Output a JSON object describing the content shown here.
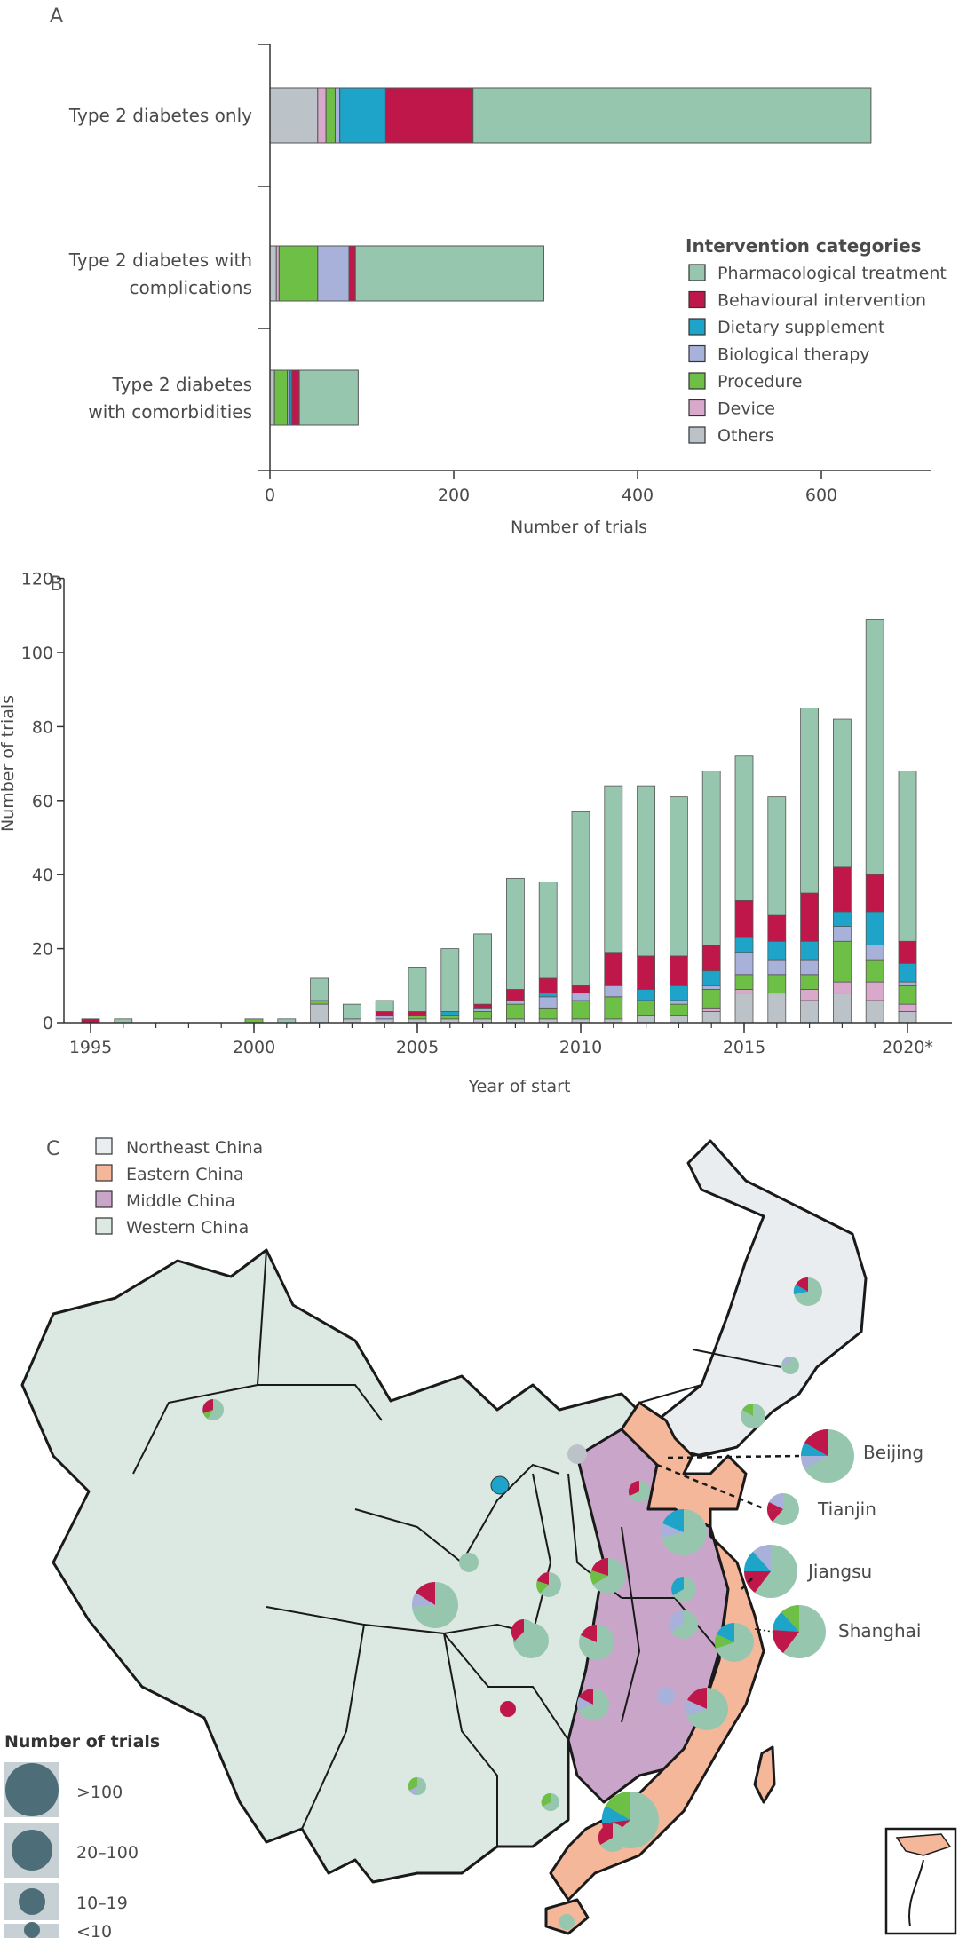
{
  "chart_data": [
    {
      "panel": "A",
      "type": "bar",
      "orientation": "horizontal",
      "stacked": true,
      "categories": [
        "Type 2 diabetes only",
        "Type 2 diabetes with complications",
        "Type 2 diabetes with comorbidities"
      ],
      "category_lines": [
        [
          "Type 2 diabetes only"
        ],
        [
          "Type 2 diabetes with",
          "complications"
        ],
        [
          "Type 2 diabetes",
          "with comorbidities"
        ]
      ],
      "series": [
        {
          "name": "Others",
          "color": "#bcc3c8",
          "values": [
            52,
            7,
            5
          ]
        },
        {
          "name": "Device",
          "color": "#d9a9cc",
          "values": [
            9,
            3,
            0
          ]
        },
        {
          "name": "Procedure",
          "color": "#6ebf45",
          "values": [
            10,
            42,
            14
          ]
        },
        {
          "name": "Biological therapy",
          "color": "#a8b1da",
          "values": [
            5,
            34,
            3
          ]
        },
        {
          "name": "Dietary supplement",
          "color": "#1ea3c9",
          "values": [
            50,
            0,
            2
          ]
        },
        {
          "name": "Behavioural intervention",
          "color": "#c0174a",
          "values": [
            95,
            7,
            8
          ]
        },
        {
          "name": "Pharmacological treatment",
          "color": "#97c6af",
          "values": [
            433,
            205,
            64
          ]
        }
      ],
      "xlabel": "Number of trials",
      "xlim": [
        0,
        700
      ],
      "xticks": [
        0,
        200,
        400,
        600
      ],
      "legend_title": "Intervention categories",
      "legend_order": [
        "Pharmacological treatment",
        "Behavioural intervention",
        "Dietary supplement",
        "Biological therapy",
        "Procedure",
        "Device",
        "Others"
      ]
    },
    {
      "panel": "B",
      "type": "bar",
      "stacked": true,
      "categories": [
        "1995",
        "1996",
        "1997",
        "1998",
        "1999",
        "2000",
        "2001",
        "2002",
        "2003",
        "2004",
        "2005",
        "2006",
        "2007",
        "2008",
        "2009",
        "2010",
        "2011",
        "2012",
        "2013",
        "2014",
        "2015",
        "2016",
        "2017",
        "2018",
        "2019",
        "2020"
      ],
      "series": [
        {
          "name": "Others",
          "color": "#bcc3c8",
          "values": [
            0,
            0,
            0,
            0,
            0,
            0,
            0,
            5,
            1,
            1,
            1,
            1,
            1,
            1,
            1,
            1,
            1,
            2,
            2,
            3,
            8,
            8,
            6,
            8,
            6,
            3
          ]
        },
        {
          "name": "Device",
          "color": "#d9a9cc",
          "values": [
            0,
            0,
            0,
            0,
            0,
            0,
            0,
            0,
            0,
            0,
            0,
            0,
            0,
            0,
            0,
            0,
            0,
            0,
            0,
            1,
            1,
            0,
            3,
            3,
            5,
            2
          ]
        },
        {
          "name": "Procedure",
          "color": "#6ebf45",
          "values": [
            0,
            0,
            0,
            0,
            0,
            1,
            0,
            1,
            0,
            0,
            1,
            1,
            2,
            4,
            3,
            5,
            6,
            4,
            3,
            5,
            4,
            5,
            4,
            11,
            6,
            5
          ]
        },
        {
          "name": "Biological therapy",
          "color": "#a8b1da",
          "values": [
            0,
            0,
            0,
            0,
            0,
            0,
            0,
            0,
            0,
            1,
            0,
            0,
            1,
            1,
            3,
            2,
            3,
            0,
            1,
            1,
            6,
            4,
            4,
            4,
            4,
            1
          ]
        },
        {
          "name": "Dietary supplement",
          "color": "#1ea3c9",
          "values": [
            0,
            0,
            0,
            0,
            0,
            0,
            0,
            0,
            0,
            0,
            0,
            1,
            0,
            0,
            1,
            0,
            0,
            3,
            4,
            4,
            4,
            5,
            5,
            4,
            9,
            5
          ]
        },
        {
          "name": "Behavioural intervention",
          "color": "#c0174a",
          "values": [
            1,
            0,
            0,
            0,
            0,
            0,
            0,
            0,
            0,
            1,
            1,
            0,
            1,
            3,
            4,
            2,
            9,
            9,
            8,
            7,
            10,
            7,
            13,
            12,
            10,
            6
          ]
        },
        {
          "name": "Pharmacological treatment",
          "color": "#97c6af",
          "values": [
            0,
            1,
            0,
            0,
            0,
            0,
            1,
            6,
            4,
            3,
            12,
            17,
            19,
            30,
            26,
            47,
            45,
            46,
            43,
            47,
            39,
            32,
            50,
            40,
            69,
            46
          ]
        }
      ],
      "xlabel": "Year of start",
      "ylabel": "Number of trials",
      "ylim": [
        0,
        120
      ],
      "yticks": [
        0,
        20,
        40,
        60,
        80,
        100,
        120
      ],
      "xtick_labels": [
        "1995",
        "2000",
        "2005",
        "2010",
        "2015",
        "2020*"
      ]
    }
  ],
  "panels": {
    "a": "A",
    "b": "B",
    "c": "C"
  },
  "map": {
    "region_legend": [
      {
        "name": "Northeast China",
        "color": "#e9edf0"
      },
      {
        "name": "Eastern China",
        "color": "#f5b79a"
      },
      {
        "name": "Middle China",
        "color": "#c9a5c9"
      },
      {
        "name": "Western China",
        "color": "#dce8e2"
      }
    ],
    "size_legend_title": "Number of trials",
    "size_legend": [
      ">100",
      "20–100",
      "10–19",
      "<10"
    ],
    "callouts": [
      "Beijing",
      "Tianjin",
      "Jiangsu",
      "Shanghai"
    ]
  }
}
